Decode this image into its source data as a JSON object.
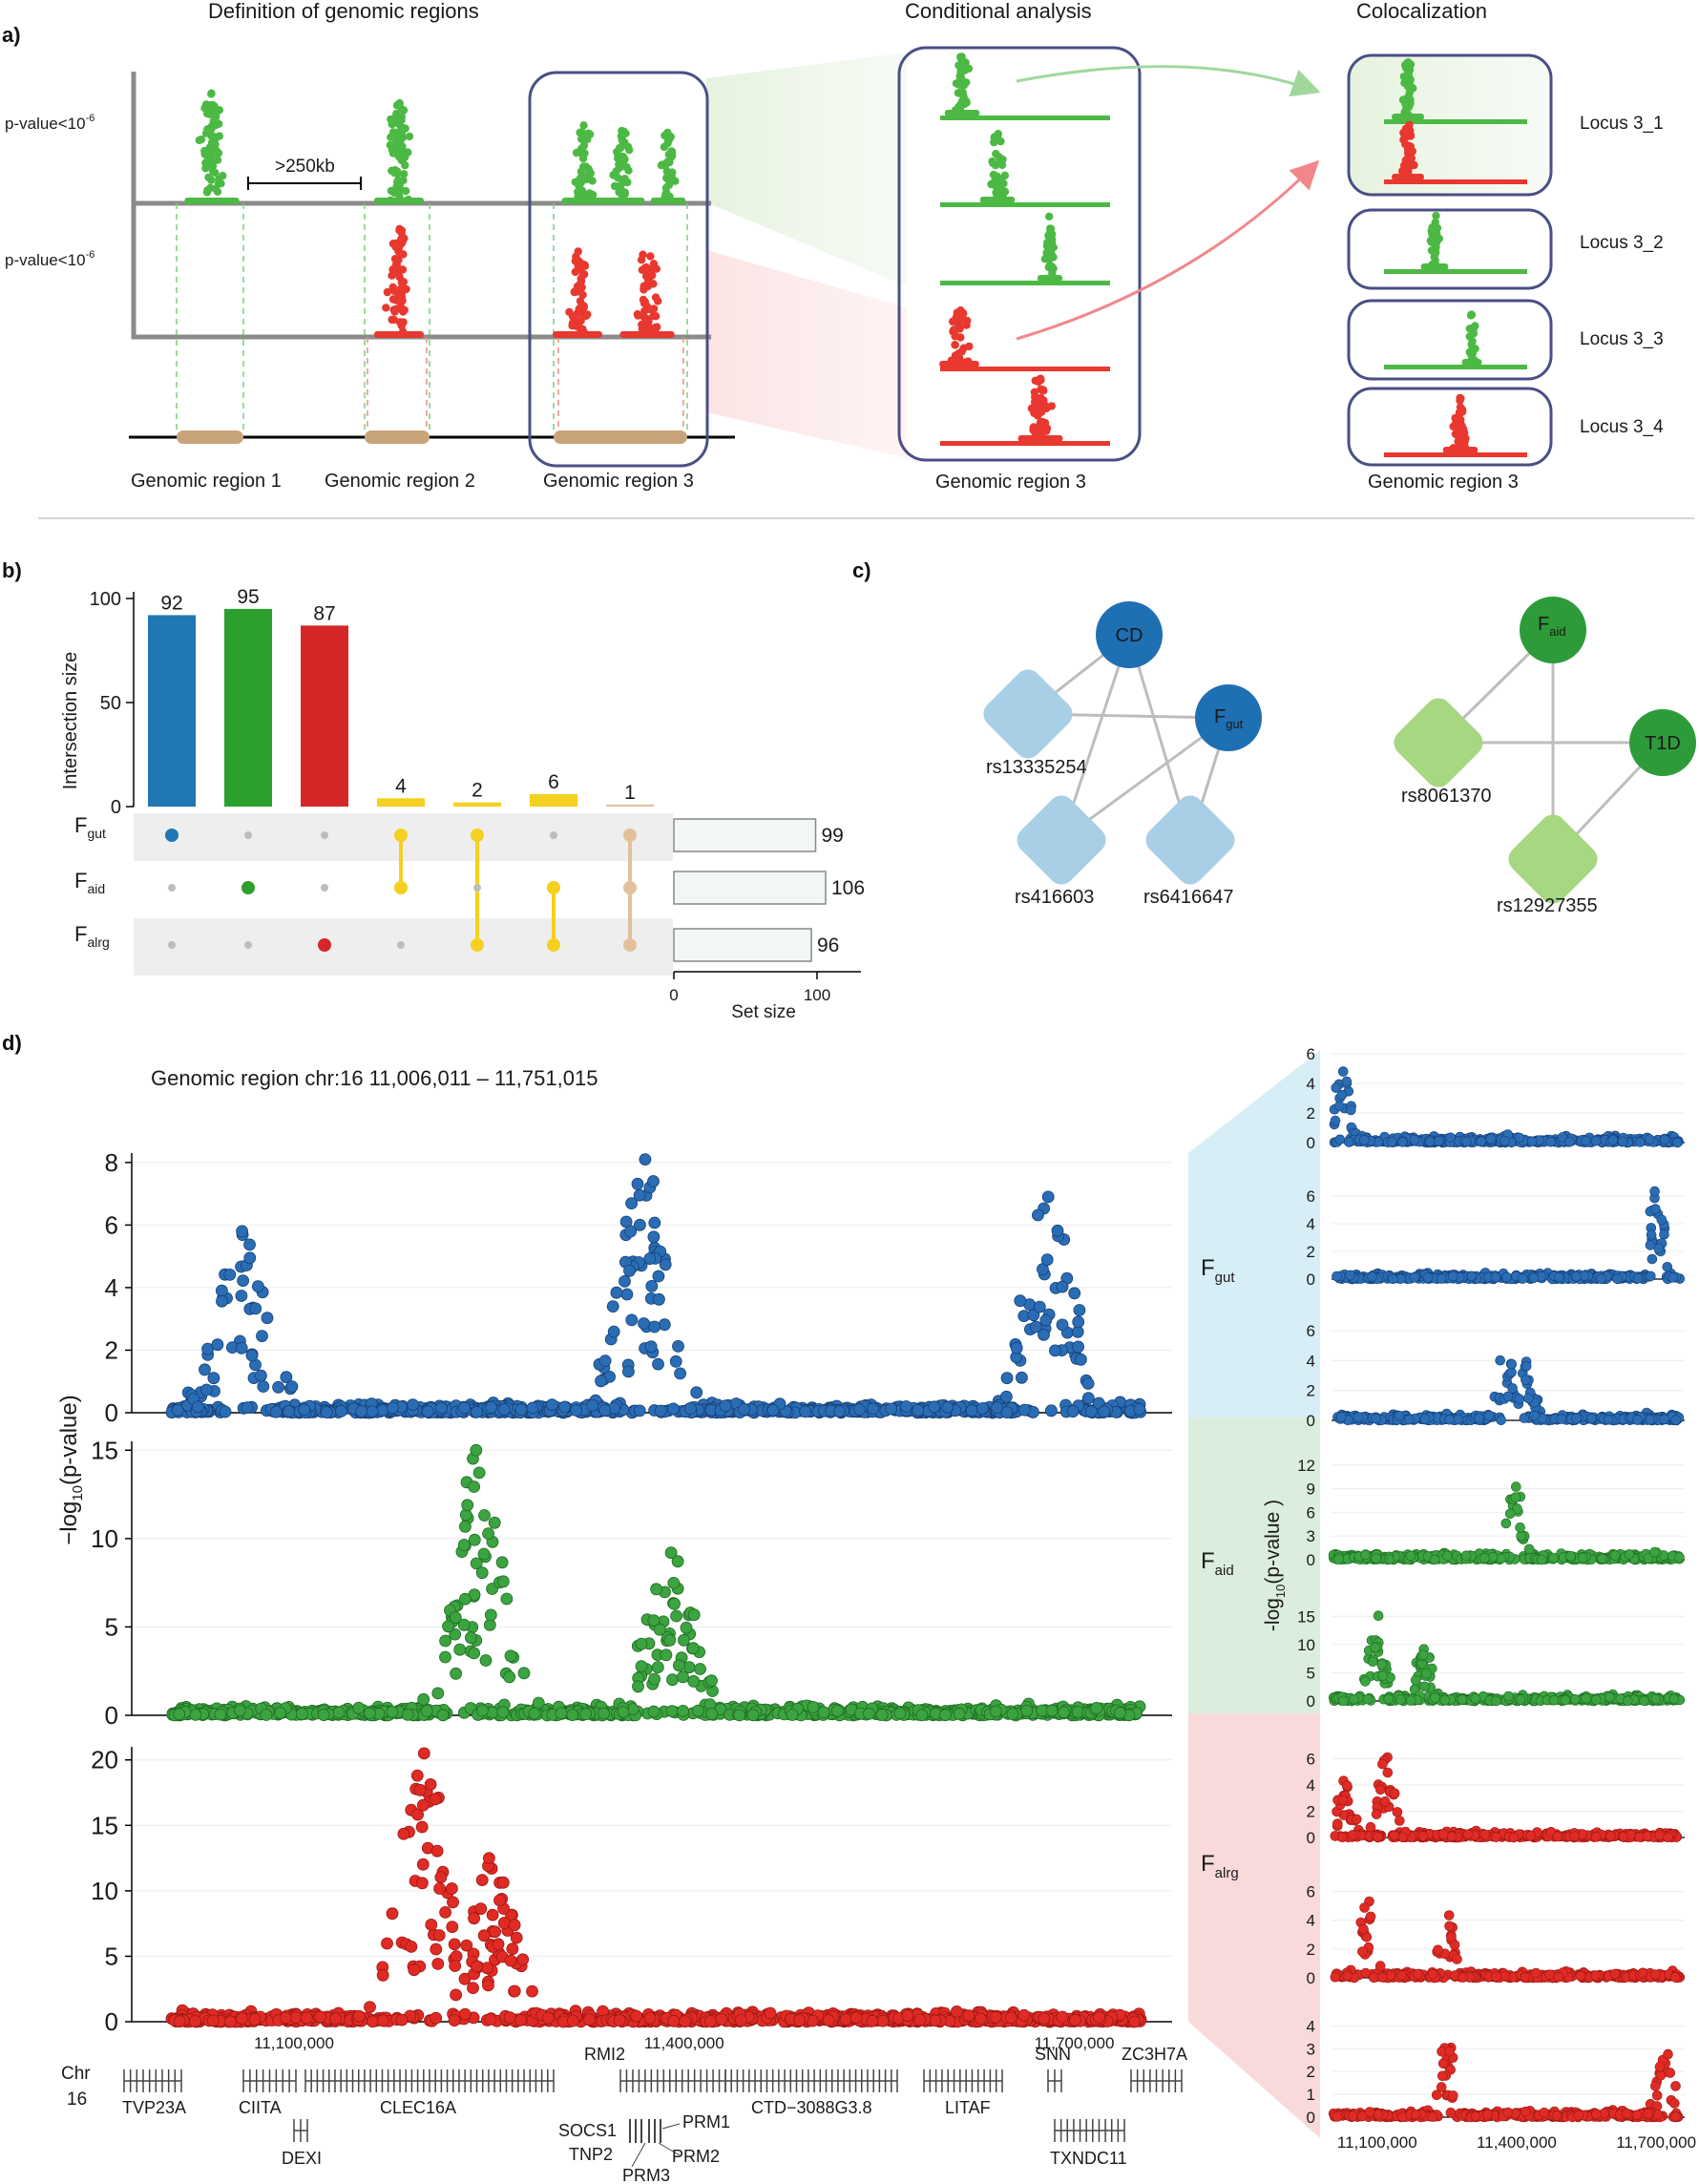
{
  "panels": {
    "a": "a)",
    "b": "b)",
    "c": "c)",
    "d": "d)"
  },
  "panel_a": {
    "col_titles": [
      "Definition of genomic regions",
      "Conditional analysis",
      "Colocalization"
    ],
    "thresholds": [
      "p-value<10",
      "p-value<10"
    ],
    "threshold_exp": "-6",
    "distance": ">250kb",
    "regions": [
      "Genomic region 1",
      "Genomic region 2",
      "Genomic region 3"
    ],
    "cond_region": "Genomic region 3",
    "coloc_region": "Genomic region 3",
    "loci": [
      "Locus 3_1",
      "Locus 3_2",
      "Locus 3_3",
      "Locus 3_4"
    ],
    "colors": {
      "green": "#4cb944",
      "red": "#e8382f",
      "tan": "#c9a37a",
      "box": "#4a4f86"
    }
  },
  "panel_b": {
    "chart_data": {
      "type": "bar",
      "title": "",
      "ylabel": "Intersection size",
      "ylim": [
        0,
        100
      ],
      "yticks": [
        "0",
        "50",
        "100"
      ],
      "values": [
        92,
        95,
        87,
        4,
        2,
        6,
        1
      ],
      "bar_colors": [
        "#1f77b4",
        "#2ca02c",
        "#d62728",
        "#f5d020",
        "#f5d020",
        "#f5d020",
        "#e2c19a"
      ],
      "sets": [
        "gut",
        "aid",
        "alrg"
      ],
      "set_prefix": "F",
      "membership": [
        [
          "gut"
        ],
        [
          "aid"
        ],
        [
          "alrg"
        ],
        [
          "gut",
          "aid"
        ],
        [
          "gut",
          "alrg"
        ],
        [
          "aid",
          "alrg"
        ],
        [
          "gut",
          "aid",
          "alrg"
        ]
      ],
      "set_sizes": [
        99,
        106,
        96
      ],
      "set_xlabel": "Set size",
      "set_xticks": [
        "0",
        "100"
      ]
    }
  },
  "panel_c": {
    "networks": [
      {
        "traits": [
          {
            "id": "CD",
            "sub": ""
          },
          {
            "id": "F",
            "sub": "gut"
          }
        ],
        "snps": [
          "rs13335254",
          "rs416603",
          "rs6416647"
        ]
      },
      {
        "traits": [
          {
            "id": "F",
            "sub": "aid"
          },
          {
            "id": "T1D",
            "sub": ""
          }
        ],
        "snps": [
          "rs8061370",
          "rs12927355"
        ]
      }
    ]
  },
  "panel_d": {
    "title": "Genomic region chr:16 11,006,011 – 11,751,015",
    "ylabel_prefix": "−log",
    "ylabel_sub": "10",
    "ylabel_suffix": "(p-value)",
    "right_ylabel_prefix": "-log",
    "right_ylabel_sub": "10",
    "right_ylabel_suffix": "(p-value )",
    "chart_data": {
      "type": "scatter",
      "x_range": [
        11006011,
        11751015
      ],
      "x_ticks": [
        "11,100,000",
        "11,400,000",
        "11,700,000"
      ],
      "right_x_ticks": [
        "11,100,000",
        "11,400,000",
        "11,700,000"
      ],
      "tracks": [
        {
          "name": "gut",
          "color": "#2a6db5",
          "ylim": [
            0,
            8.3
          ],
          "yticks": [
            "0",
            "2",
            "4",
            "6",
            "8"
          ]
        },
        {
          "name": "aid",
          "color": "#3ba33f",
          "ylim": [
            0,
            15.5
          ],
          "yticks": [
            "0",
            "5",
            "10",
            "15"
          ]
        },
        {
          "name": "alrg",
          "color": "#e02b25",
          "ylim": [
            0,
            21
          ],
          "yticks": [
            "0",
            "5",
            "10",
            "15",
            "20"
          ]
        }
      ],
      "peaks": [
        {
          "track": "gut",
          "pos": 11060000,
          "max": 5.8
        },
        {
          "track": "gut",
          "pos": 11370000,
          "max": 8.1
        },
        {
          "track": "gut",
          "pos": 11680000,
          "max": 6.9
        },
        {
          "track": "aid",
          "pos": 11240000,
          "max": 15.0
        },
        {
          "track": "aid",
          "pos": 11390000,
          "max": 9.2
        },
        {
          "track": "alrg",
          "pos": 11200000,
          "max": 20.5
        },
        {
          "track": "alrg",
          "pos": 11250000,
          "max": 12.5
        }
      ],
      "right_panels": [
        {
          "set": "gut",
          "yticks": [
            "0",
            "2",
            "4",
            "6"
          ]
        },
        {
          "set": "gut",
          "yticks": [
            "0",
            "2",
            "4",
            "6"
          ]
        },
        {
          "set": "gut",
          "yticks": [
            "0",
            "2",
            "4",
            "6"
          ]
        },
        {
          "set": "aid",
          "yticks": [
            "0",
            "3",
            "6",
            "9",
            "12"
          ]
        },
        {
          "set": "aid",
          "yticks": [
            "0",
            "5",
            "10",
            "15"
          ]
        },
        {
          "set": "alrg",
          "yticks": [
            "0",
            "2",
            "4",
            "6"
          ]
        },
        {
          "set": "alrg",
          "yticks": [
            "0",
            "2",
            "4",
            "6"
          ]
        },
        {
          "set": "alrg",
          "yticks": [
            "0",
            "1",
            "2",
            "3",
            "4"
          ]
        }
      ],
      "right_labels": [
        {
          "prefix": "F",
          "sub": "gut"
        },
        {
          "prefix": "F",
          "sub": "aid"
        },
        {
          "prefix": "F",
          "sub": "alrg"
        }
      ]
    },
    "chr_label": [
      "Chr",
      "16"
    ],
    "genes": [
      "TVP23A",
      "CIITA",
      "DEXI",
      "CLEC16A",
      "RMI2",
      "SOCS1",
      "TNP2",
      "PRM3",
      "PRM2",
      "PRM1",
      "CTD−3088G3.8",
      "LITAF",
      "SNN",
      "ZC3H7A",
      "TXNDC11"
    ]
  }
}
